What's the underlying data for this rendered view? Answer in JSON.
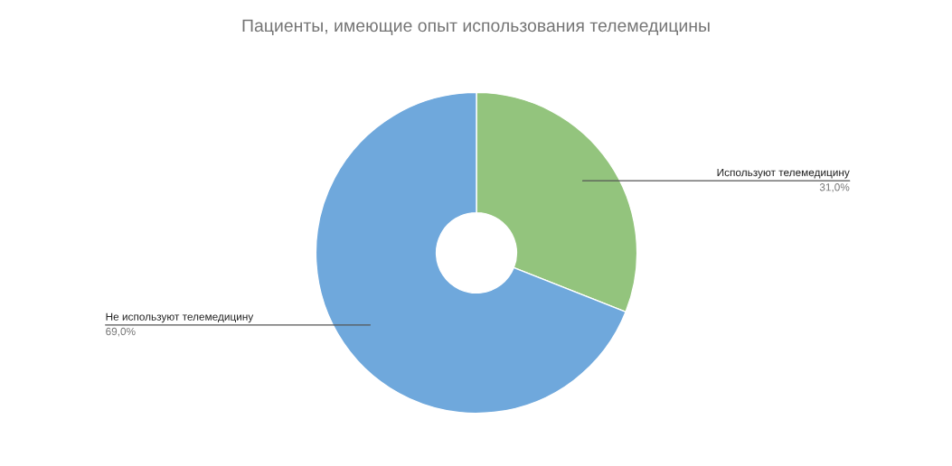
{
  "chart_data": {
    "type": "donut",
    "title": "Пациенты, имеющие опыт использования телемедицины",
    "categories": [
      "Используют телемедицину",
      "Не используют телемедицину"
    ],
    "values": [
      31.0,
      69.0
    ],
    "colors": [
      "#93c47d",
      "#6fa8dc"
    ],
    "value_labels": [
      "31,0%",
      "69,0%"
    ]
  }
}
